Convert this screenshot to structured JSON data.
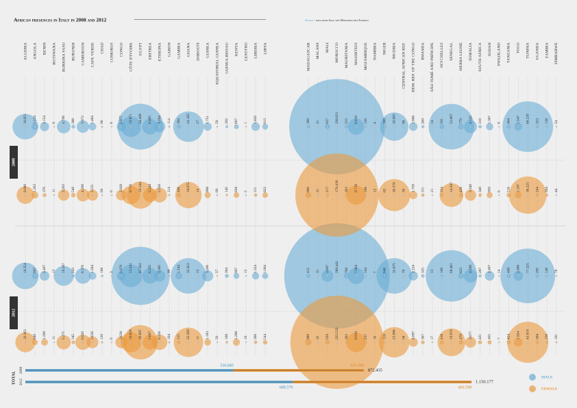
{
  "chart_data": {
    "type": "bubble",
    "title": "African presences in Italy in 2008 and 2012",
    "source_label": "Source:",
    "source": "data from Istat and Ministero dell'Interno",
    "years": [
      "2008",
      "2012"
    ],
    "categories": [
      "ALGERIA",
      "ANGOLA",
      "BENIN",
      "BOTSWANA",
      "BURKINA FASO",
      "BURUNDI",
      "CAMEROON",
      "CAPE VERDE",
      "CHAD",
      "COMOROS",
      "CONGO",
      "CÔTE D'IVOIRE",
      "EGYPT",
      "ERITREA",
      "ETHIOPIA",
      "GABON",
      "GAMBIA",
      "GHANA",
      "DJIBOUTI",
      "GUINEA",
      "EQUATORIAL GUINEA",
      "GUINEA-BISSAU",
      "KENYA",
      "LESOTHO",
      "LIBERIA",
      "LIBYA",
      "MADAGASCAR",
      "MALAWI",
      "MALI",
      "MOROCCO",
      "MAURITANIA",
      "MAURITIUS",
      "MOZAMBIQUE",
      "NAMIBIA",
      "NIGER",
      "NIGERIA",
      "CENTRAL AFRICAN REP.",
      "DEM. REP. OF THE CONGO",
      "RWANDA",
      "SÃO TOMÉ AND PRÍNCIPE",
      "SEYCHELLES",
      "SENEGAL",
      "SIERRA LEONE",
      "SOMALIA",
      "SOUTH AFRICA",
      "SUDAN",
      "SWAZILAND",
      "TANZANIA",
      "TOGO",
      "TUNISIA",
      "UGANDA",
      "ZAMBIA",
      "ZIMBABWE"
    ],
    "series": [
      {
        "name": "Male",
        "color": "#6aaed6",
        "years": [
          {
            "values": [
              16951,
              1124,
              2154,
              9,
              4706,
              388,
              3972,
              1484,
              96,
              8,
              2077,
              10871,
              54408,
              6405,
              3294,
              114,
              384,
              24182,
              27,
              1751,
              59,
              202,
              607,
              1,
              1850,
              913,
              309,
              21,
              637,
              236021,
              315,
              6819,
              120,
              4,
              300,
              20965,
              88,
              1908,
              260,
              14,
              591,
              53807,
              779,
              4325,
              310,
              1367,
              8,
              404,
              1547,
              66230,
              253,
              138,
              54
            ],
            "value_labels": [
              "16.951",
              "1.124",
              "2.154",
              "9",
              "4.706",
              "388",
              "3.972",
              "1.484",
              "96",
              "8",
              "2.077",
              "10.871",
              "54.408",
              "6.405",
              "3.294",
              "114",
              "384",
              "24.182",
              "27",
              "1.751",
              "59",
              "202",
              "607",
              "1",
              "1.850",
              "913",
              "309",
              "21",
              "637",
              "236.021",
              "315",
              "6.819",
              "120",
              "4",
              "300",
              "20.965",
              "88",
              "1.908",
              "260",
              "14",
              "591",
              "53.807",
              "779",
              "4.325",
              "310",
              "1.367",
              "8",
              "404",
              "1.547",
              "66.230",
              "253",
              "138",
              "54"
            ]
          },
          {
            "values": [
              18354,
              907,
              2407,
              15,
              10287,
              243,
              6376,
              1564,
              168,
              3,
              2078,
              13241,
              87592,
              6335,
              3385,
              99,
              1244,
              32452,
              15,
              3206,
              57,
              394,
              907,
              15,
              1324,
              1004,
              412,
              31,
              3697,
              288442,
              708,
              7004,
              104,
              7,
              846,
              32675,
              79,
              2224,
              325,
              13,
              166,
              68461,
              823,
              4599,
              287,
              2407,
              14,
              408,
              2496,
              77325,
              295,
              140,
              78
            ],
            "value_labels": [
              "18.354",
              "907",
              "2.407",
              "15",
              "10.287",
              "243",
              "6.376",
              "1.564",
              "168",
              "3",
              "2.078",
              "13.241",
              "87.592",
              "6.335",
              "3.385",
              "99",
              "1.244",
              "32.452",
              "15",
              "3.206",
              "57",
              "394",
              "907",
              "15",
              "1.324",
              "1.004",
              "412",
              "31",
              "3.697",
              "288.442",
              "708",
              "7.004",
              "104",
              "7",
              "846",
              "32.675",
              "79",
              "2.224",
              "325",
              "13",
              "166",
              "68.461",
              "823",
              "4.599",
              "287",
              "2.407",
              "14",
              "408",
              "2.496",
              "77.325",
              "295",
              "140",
              "78"
            ]
          }
        ]
      },
      {
        "name": "Female",
        "color": "#eb9a3c",
        "years": [
          {
            "values": [
              8000,
              1263,
              376,
              11,
              3293,
              540,
              4206,
              3231,
              60,
              0,
              2920,
              8716,
              19144,
              5344,
              5556,
              114,
              440,
              18075,
              14,
              998,
              69,
              145,
              838,
              5,
              311,
              822,
              860,
              21,
              217,
              179430,
              263,
              9719,
              166,
              12,
              62,
              26578,
              56,
              1759,
              311,
              21,
              334,
              14587,
              426,
              3340,
              340,
              950,
              6,
              510,
              1107,
              36225,
              244,
              204,
              44
            ],
            "value_labels": [
              "8.000",
              "1.263",
              "376",
              "11",
              "3.293",
              "540",
              "4.206",
              "3.231",
              "60",
              "0",
              "2.920",
              "8.716",
              "19.144",
              "5.344",
              "5.556",
              "114",
              "440",
              "18.075",
              "14",
              "998",
              "69",
              "145",
              "838",
              "5",
              "311",
              "822",
              "860",
              "21",
              "217",
              "179.430",
              "263",
              "9.719",
              "166",
              "12",
              "62",
              "26.578",
              "56",
              "1.759",
              "311",
              "21",
              "334",
              "14.587",
              "426",
              "3.340",
              "340",
              "950",
              "6",
              "510",
              "1.107",
              "36.225",
              "244",
              "204",
              "44"
            ]
          },
          {
            "values": [
              10363,
              840,
              1209,
              11,
              5275,
              345,
              6020,
              3636,
              120,
              0,
              3638,
              10626,
              30697,
              5667,
              6156,
              104,
              315,
              22569,
              11,
              1183,
              50,
              168,
              1288,
              19,
              300,
              544,
              989,
              32,
              529,
              225532,
              202,
              9910,
              237,
              16,
              118,
              23996,
              58,
              2097,
              367,
              17,
              418,
              19970,
              479,
              3077,
              431,
              455,
              7,
              424,
              1924,
              43918,
              304,
              158,
              101
            ],
            "value_labels": [
              "10.363",
              "840",
              "1.209",
              "11",
              "5.275",
              "345",
              "6.020",
              "3.636",
              "120",
              "0",
              "3.638",
              "10.626",
              "30.697",
              "5.667",
              "6.156",
              "104",
              "315",
              "22.569",
              "11",
              "1.183",
              "50",
              "168",
              "1.288",
              "19",
              "300",
              "544",
              "989",
              "32",
              "529",
              "225.532",
              "202",
              "9.910",
              "237",
              "16",
              "118",
              "23.996",
              "58",
              "2.097",
              "367",
              "17",
              "418",
              "19.970",
              "479",
              "3.077",
              "431",
              "455",
              "7",
              "424",
              "1.924",
              "43.918",
              "304",
              "158",
              "101"
            ]
          }
        ]
      }
    ],
    "totals": {
      "label": "Total",
      "rows": [
        {
          "male": 536845,
          "male_label": "536.845",
          "female": 335590,
          "female_label": "335.590",
          "total": 872435,
          "total_label": "872.435"
        },
        {
          "male": 689579,
          "male_label": "689.579",
          "female": 460598,
          "female_label": "460.598",
          "total": 1150177,
          "total_label": "1.150.177"
        }
      ]
    }
  }
}
